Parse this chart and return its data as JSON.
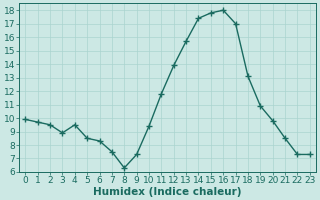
{
  "x": [
    0,
    1,
    2,
    3,
    4,
    5,
    6,
    7,
    8,
    9,
    10,
    11,
    12,
    13,
    14,
    15,
    16,
    17,
    18,
    19,
    20,
    21,
    22,
    23
  ],
  "y": [
    9.9,
    9.7,
    9.5,
    8.9,
    9.5,
    8.5,
    8.3,
    7.5,
    6.3,
    7.3,
    9.4,
    11.8,
    13.9,
    15.7,
    17.4,
    17.8,
    18.0,
    17.0,
    13.1,
    10.9,
    9.8,
    8.5,
    7.3,
    7.3
  ],
  "line_color": "#1a6b60",
  "marker": "+",
  "marker_size": 4,
  "marker_lw": 1.0,
  "bg_color": "#cce8e4",
  "grid_color": "#aad4cf",
  "xlabel": "Humidex (Indice chaleur)",
  "ylim": [
    6,
    18.5
  ],
  "xlim": [
    -0.5,
    23.5
  ],
  "yticks": [
    6,
    7,
    8,
    9,
    10,
    11,
    12,
    13,
    14,
    15,
    16,
    17,
    18
  ],
  "xticks": [
    0,
    1,
    2,
    3,
    4,
    5,
    6,
    7,
    8,
    9,
    10,
    11,
    12,
    13,
    14,
    15,
    16,
    17,
    18,
    19,
    20,
    21,
    22,
    23
  ],
  "tick_label_fontsize": 6.5,
  "xlabel_fontsize": 7.5,
  "line_width": 1.0,
  "axis_color": "#1a6b60",
  "figsize": [
    3.2,
    2.0
  ],
  "dpi": 100
}
